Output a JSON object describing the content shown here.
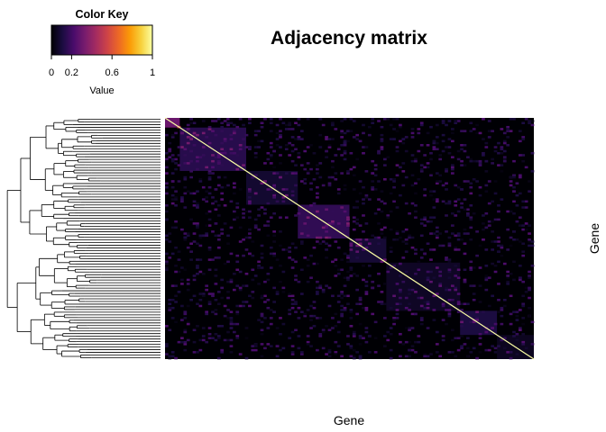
{
  "chart_data": {
    "type": "heatmap",
    "title": "Adjacency matrix",
    "xlabel": "Gene",
    "ylabel": "Gene",
    "color_key": {
      "title": "Color Key",
      "axis_label": "Value",
      "range": [
        0,
        1
      ],
      "ticks": [
        0,
        0.2,
        0.6,
        1
      ],
      "tick_labels": [
        "0",
        "0.2",
        "0.6",
        "1"
      ],
      "colormap": [
        "#000004",
        "#1b0c41",
        "#4a0c6b",
        "#781c6d",
        "#a52c60",
        "#cf4446",
        "#ed6925",
        "#fb9b06",
        "#f7d13d",
        "#fcffa4"
      ]
    },
    "matrix": {
      "order": "dendrogram",
      "diagonal_value": 1,
      "background_value": 0.02,
      "symmetric": true,
      "modules": [
        {
          "start": 0.0,
          "end": 0.04,
          "value": 0.3
        },
        {
          "start": 0.04,
          "end": 0.22,
          "value": 0.14
        },
        {
          "start": 0.22,
          "end": 0.36,
          "value": 0.08
        },
        {
          "start": 0.36,
          "end": 0.5,
          "value": 0.16
        },
        {
          "start": 0.5,
          "end": 0.6,
          "value": 0.09
        },
        {
          "start": 0.6,
          "end": 0.8,
          "value": 0.06
        },
        {
          "start": 0.8,
          "end": 0.9,
          "value": 0.11
        },
        {
          "start": 0.9,
          "end": 1.0,
          "value": 0.05
        }
      ]
    },
    "dendrogram": {
      "side": "left"
    },
    "grid": false,
    "legend_position": "top-left"
  }
}
